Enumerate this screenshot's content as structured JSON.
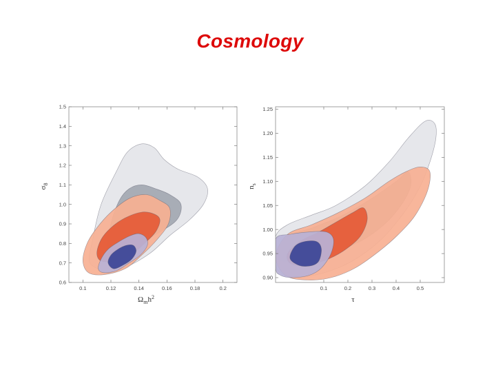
{
  "title": "Cosmology",
  "colors": {
    "title": "#dd0a0a",
    "grey_outer": "#e4e5e9",
    "grey_inner": "#a3a8b1",
    "orange_outer": "#f7b093",
    "orange_inner": "#e55a36",
    "blue_outer": "#b8b2d6",
    "blue_inner": "#3b4496"
  },
  "chart_data": [
    {
      "type": "contour",
      "xlabel": "Ω",
      "xlabel_sub": "m",
      "xlabel_tail": "h",
      "xlabel_sup": "2",
      "ylabel": "σ",
      "ylabel_sub": "8",
      "xlim": [
        0.09,
        0.21
      ],
      "ylim": [
        0.6,
        1.5
      ],
      "xticks": [
        "0.1",
        "0.12",
        "0.14",
        "0.16",
        "0.18",
        "0.2"
      ],
      "yticks": [
        "0.6",
        "0.7",
        "0.8",
        "0.9",
        "1.0",
        "1.1",
        "1.2",
        "1.3",
        "1.4",
        "1.5"
      ],
      "contours": [
        {
          "color": "grey_outer",
          "points": [
            [
              0.105,
              0.7
            ],
            [
              0.107,
              0.82
            ],
            [
              0.113,
              1.0
            ],
            [
              0.124,
              1.17
            ],
            [
              0.132,
              1.27
            ],
            [
              0.142,
              1.31
            ],
            [
              0.151,
              1.29
            ],
            [
              0.158,
              1.23
            ],
            [
              0.168,
              1.18
            ],
            [
              0.182,
              1.14
            ],
            [
              0.189,
              1.08
            ],
            [
              0.186,
              1.0
            ],
            [
              0.176,
              0.92
            ],
            [
              0.162,
              0.84
            ],
            [
              0.148,
              0.75
            ],
            [
              0.131,
              0.68
            ],
            [
              0.118,
              0.66
            ]
          ]
        },
        {
          "color": "grey_inner",
          "points": [
            [
              0.118,
              0.77
            ],
            [
              0.12,
              0.9
            ],
            [
              0.126,
              1.02
            ],
            [
              0.133,
              1.08
            ],
            [
              0.142,
              1.1
            ],
            [
              0.152,
              1.08
            ],
            [
              0.162,
              1.05
            ],
            [
              0.17,
              1.0
            ],
            [
              0.167,
              0.92
            ],
            [
              0.153,
              0.85
            ],
            [
              0.138,
              0.79
            ],
            [
              0.126,
              0.75
            ]
          ]
        },
        {
          "color": "orange_outer",
          "points": [
            [
              0.1,
              0.71
            ],
            [
              0.103,
              0.8
            ],
            [
              0.11,
              0.88
            ],
            [
              0.12,
              0.96
            ],
            [
              0.133,
              1.03
            ],
            [
              0.145,
              1.05
            ],
            [
              0.155,
              1.02
            ],
            [
              0.162,
              0.98
            ],
            [
              0.161,
              0.9
            ],
            [
              0.153,
              0.82
            ],
            [
              0.142,
              0.74
            ],
            [
              0.13,
              0.67
            ],
            [
              0.115,
              0.64
            ],
            [
              0.104,
              0.65
            ]
          ]
        },
        {
          "color": "orange_inner",
          "points": [
            [
              0.11,
              0.75
            ],
            [
              0.113,
              0.82
            ],
            [
              0.12,
              0.88
            ],
            [
              0.13,
              0.93
            ],
            [
              0.142,
              0.96
            ],
            [
              0.151,
              0.95
            ],
            [
              0.155,
              0.92
            ],
            [
              0.152,
              0.86
            ],
            [
              0.144,
              0.8
            ],
            [
              0.134,
              0.74
            ],
            [
              0.122,
              0.71
            ],
            [
              0.113,
              0.71
            ]
          ]
        },
        {
          "color": "blue_outer",
          "points": [
            [
              0.111,
              0.67
            ],
            [
              0.113,
              0.72
            ],
            [
              0.118,
              0.77
            ],
            [
              0.126,
              0.81
            ],
            [
              0.134,
              0.84
            ],
            [
              0.14,
              0.85
            ],
            [
              0.145,
              0.83
            ],
            [
              0.146,
              0.79
            ],
            [
              0.141,
              0.74
            ],
            [
              0.133,
              0.7
            ],
            [
              0.124,
              0.66
            ],
            [
              0.115,
              0.65
            ]
          ]
        },
        {
          "color": "blue_inner",
          "points": [
            [
              0.118,
              0.7
            ],
            [
              0.12,
              0.74
            ],
            [
              0.125,
              0.77
            ],
            [
              0.131,
              0.79
            ],
            [
              0.136,
              0.79
            ],
            [
              0.138,
              0.76
            ],
            [
              0.135,
              0.72
            ],
            [
              0.129,
              0.69
            ],
            [
              0.122,
              0.67
            ]
          ]
        }
      ]
    },
    {
      "type": "contour",
      "xlabel": "τ",
      "ylabel": "n",
      "ylabel_sub": "s",
      "xlim": [
        -0.1,
        0.6
      ],
      "ylim": [
        0.89,
        1.255
      ],
      "xticks": [
        "0.1",
        "0.2",
        "0.3",
        "0.4",
        "0.5"
      ],
      "yticks": [
        "0.90",
        "0.95",
        "1.00",
        "1.05",
        "1.10",
        "1.15",
        "1.20",
        "1.25"
      ],
      "contours": [
        {
          "color": "grey_outer",
          "points": [
            [
              -0.1,
              0.93
            ],
            [
              -0.1,
              0.985
            ],
            [
              -0.05,
              1.01
            ],
            [
              0.05,
              1.03
            ],
            [
              0.15,
              1.05
            ],
            [
              0.27,
              1.09
            ],
            [
              0.37,
              1.14
            ],
            [
              0.45,
              1.19
            ],
            [
              0.52,
              1.225
            ],
            [
              0.56,
              1.22
            ],
            [
              0.565,
              1.19
            ],
            [
              0.54,
              1.14
            ],
            [
              0.5,
              1.09
            ],
            [
              0.44,
              1.04
            ],
            [
              0.34,
              0.98
            ],
            [
              0.22,
              0.935
            ],
            [
              0.1,
              0.91
            ],
            [
              -0.02,
              0.9
            ],
            [
              -0.08,
              0.91
            ]
          ]
        },
        {
          "color": "grey_inner",
          "points": [
            [
              -0.1,
              0.95
            ],
            [
              -0.05,
              0.985
            ],
            [
              0.06,
              1.005
            ],
            [
              0.18,
              1.03
            ],
            [
              0.3,
              1.065
            ],
            [
              0.4,
              1.1
            ],
            [
              0.45,
              1.12
            ],
            [
              0.46,
              1.09
            ],
            [
              0.42,
              1.05
            ],
            [
              0.35,
              1.01
            ],
            [
              0.25,
              0.975
            ],
            [
              0.12,
              0.95
            ],
            [
              0.0,
              0.935
            ],
            [
              -0.08,
              0.935
            ]
          ]
        },
        {
          "color": "orange_outer",
          "points": [
            [
              -0.1,
              0.945
            ],
            [
              -0.05,
              0.99
            ],
            [
              0.05,
              1.01
            ],
            [
              0.16,
              1.035
            ],
            [
              0.27,
              1.065
            ],
            [
              0.37,
              1.1
            ],
            [
              0.44,
              1.12
            ],
            [
              0.5,
              1.13
            ],
            [
              0.54,
              1.12
            ],
            [
              0.53,
              1.08
            ],
            [
              0.48,
              1.03
            ],
            [
              0.41,
              0.99
            ],
            [
              0.33,
              0.955
            ],
            [
              0.23,
              0.92
            ],
            [
              0.13,
              0.9
            ],
            [
              0.03,
              0.895
            ],
            [
              -0.06,
              0.905
            ]
          ]
        },
        {
          "color": "orange_inner",
          "points": [
            [
              -0.05,
              0.95
            ],
            [
              0.0,
              0.975
            ],
            [
              0.08,
              0.995
            ],
            [
              0.15,
              1.015
            ],
            [
              0.22,
              1.035
            ],
            [
              0.265,
              1.045
            ],
            [
              0.28,
              1.02
            ],
            [
              0.25,
              0.985
            ],
            [
              0.18,
              0.955
            ],
            [
              0.1,
              0.935
            ],
            [
              0.02,
              0.925
            ],
            [
              -0.04,
              0.93
            ]
          ]
        },
        {
          "color": "blue_outer",
          "points": [
            [
              -0.1,
              0.92
            ],
            [
              -0.1,
              0.98
            ],
            [
              -0.04,
              0.99
            ],
            [
              0.04,
              0.995
            ],
            [
              0.11,
              0.995
            ],
            [
              0.14,
              0.98
            ],
            [
              0.13,
              0.95
            ],
            [
              0.09,
              0.92
            ],
            [
              0.04,
              0.905
            ],
            [
              -0.03,
              0.9
            ],
            [
              -0.08,
              0.905
            ]
          ]
        },
        {
          "color": "blue_inner",
          "points": [
            [
              -0.04,
              0.94
            ],
            [
              -0.02,
              0.965
            ],
            [
              0.02,
              0.975
            ],
            [
              0.07,
              0.975
            ],
            [
              0.09,
              0.96
            ],
            [
              0.08,
              0.935
            ],
            [
              0.05,
              0.925
            ],
            [
              0.0,
              0.925
            ]
          ]
        }
      ]
    }
  ]
}
